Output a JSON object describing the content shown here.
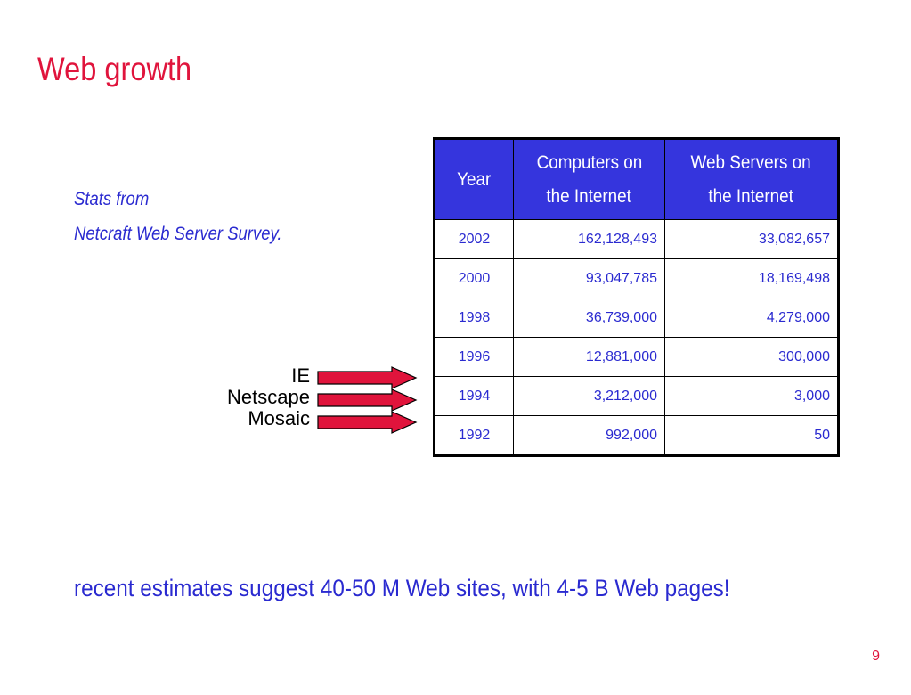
{
  "slide": {
    "title": "Web growth",
    "note_lines": [
      "Stats from",
      "Netcraft Web Server Survey."
    ],
    "browsers": [
      "IE",
      "Netscape",
      "Mosaic"
    ],
    "footer": "recent estimates suggest 40-50 M Web sites, with 4-5 B Web pages!",
    "page_number": "9",
    "colors": {
      "title": "#e0143c",
      "text": "#2a2ad0",
      "table_header": "#3535dd",
      "arrow": "#e0143c"
    }
  },
  "table": {
    "headers": [
      [
        "Year"
      ],
      [
        "Computers on",
        "the Internet"
      ],
      [
        "Web Servers on",
        "the Internet"
      ]
    ],
    "rows": [
      {
        "year": "2002",
        "computers": "162,128,493",
        "servers": "33,082,657"
      },
      {
        "year": "2000",
        "computers": "93,047,785",
        "servers": "18,169,498"
      },
      {
        "year": "1998",
        "computers": "36,739,000",
        "servers": "4,279,000"
      },
      {
        "year": "1996",
        "computers": "12,881,000",
        "servers": "300,000"
      },
      {
        "year": "1994",
        "computers": "3,212,000",
        "servers": "3,000"
      },
      {
        "year": "1992",
        "computers": "992,000",
        "servers": "50"
      }
    ]
  }
}
